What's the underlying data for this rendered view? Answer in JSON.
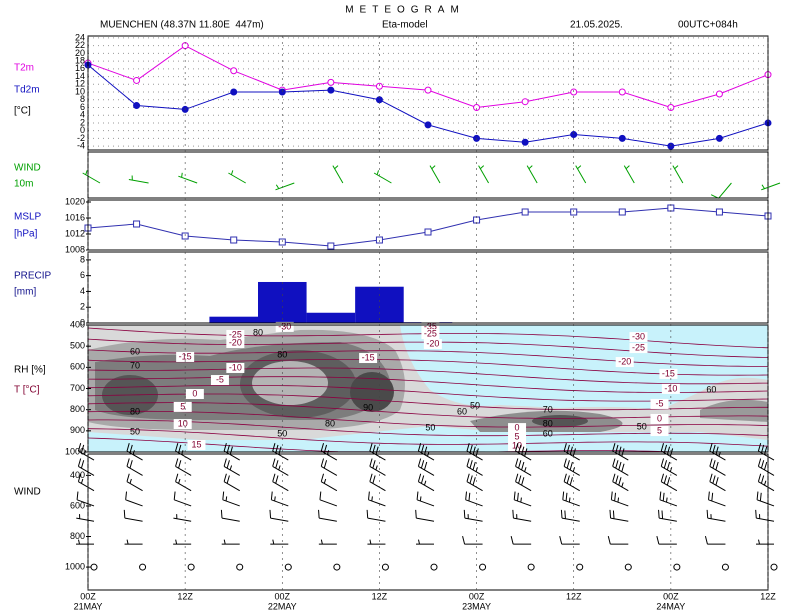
{
  "header": {
    "title": "METEOGRAM",
    "station": "MUENCHEN (48.37N 11.80E  447m)",
    "model": "Eta-model",
    "date": "21.05.2025.",
    "run": "00UTC+084h"
  },
  "time_axis": {
    "xlim": [
      0,
      84
    ],
    "xticks": [
      {
        "value": 0,
        "label": "00Z"
      },
      {
        "value": 12,
        "label": "12Z"
      },
      {
        "value": 24,
        "label": "00Z"
      },
      {
        "value": 36,
        "label": "12Z"
      },
      {
        "value": 48,
        "label": "00Z"
      },
      {
        "value": 60,
        "label": "12Z"
      },
      {
        "value": 72,
        "label": "00Z"
      },
      {
        "value": 84,
        "label": "12Z"
      }
    ],
    "date_labels": [
      {
        "value": 0,
        "label": "21MAY"
      },
      {
        "value": 24,
        "label": "22MAY"
      },
      {
        "value": 48,
        "label": "23MAY"
      },
      {
        "value": 72,
        "label": "24MAY"
      }
    ]
  },
  "chart_data": [
    {
      "type": "line",
      "unit": "[°C]",
      "x": [
        0,
        6,
        12,
        18,
        24,
        30,
        36,
        42,
        48,
        54,
        60,
        66,
        72,
        78,
        84
      ],
      "series": [
        {
          "name": "T2m",
          "color": "#e000e0",
          "values": [
            17.5,
            13,
            22,
            15.5,
            10.5,
            12.5,
            11.5,
            10.5,
            6,
            7.5,
            10,
            10,
            6,
            9.5,
            14.5
          ]
        },
        {
          "name": "Td2m",
          "color": "#1010c0",
          "values": [
            17,
            6.5,
            5.5,
            10,
            10,
            10.5,
            8,
            1.5,
            -2,
            -3,
            -1,
            -2,
            -4,
            -2,
            2
          ]
        }
      ],
      "ylim": [
        -5,
        24.5
      ],
      "yticks": [
        24,
        22,
        20,
        18,
        16,
        14,
        12,
        10,
        8,
        6,
        4,
        2,
        0,
        -2,
        -4
      ],
      "grid": true
    },
    {
      "type": "barbs",
      "label": "WIND",
      "sublabel": "10m",
      "color": "#00a000",
      "x": [
        0,
        6,
        12,
        18,
        24,
        30,
        36,
        42,
        48,
        54,
        60,
        66,
        72,
        78,
        84
      ],
      "speed": [
        5,
        5,
        5,
        5,
        5,
        5,
        5,
        5,
        5,
        5,
        5,
        5,
        5,
        10,
        5
      ],
      "direction": [
        300,
        280,
        290,
        300,
        250,
        330,
        300,
        330,
        330,
        330,
        330,
        330,
        330,
        220,
        250
      ]
    },
    {
      "type": "line",
      "label": "MSLP",
      "unit": "[hPa]",
      "x": [
        0,
        6,
        12,
        18,
        24,
        30,
        36,
        42,
        48,
        54,
        60,
        66,
        72,
        78,
        84
      ],
      "series": [
        {
          "name": "MSLP",
          "color": "#3030b0",
          "values": [
            1013.5,
            1014.5,
            1011.5,
            1010.5,
            1010,
            1009,
            1010.5,
            1012.5,
            1015.5,
            1017.5,
            1017.5,
            1017.5,
            1018.5,
            1017.5,
            1016.5
          ]
        }
      ],
      "ylim": [
        1008,
        1020.5
      ],
      "yticks": [
        1008,
        1012,
        1016,
        1020
      ]
    },
    {
      "type": "bar",
      "label": "PRECIP",
      "unit": "[mm]",
      "color": "#1010c0",
      "x": [
        0,
        6,
        12,
        18,
        24,
        30,
        36,
        42,
        48,
        54,
        60,
        66,
        72,
        78,
        84
      ],
      "values": [
        0,
        0,
        0,
        0.8,
        5.2,
        1.3,
        4.6,
        0.1,
        0,
        0,
        0,
        0,
        0,
        0,
        0
      ],
      "ylim": [
        0,
        9
      ],
      "yticks": [
        0,
        2,
        4,
        6,
        8
      ]
    },
    {
      "type": "contour",
      "label": "RH [%]",
      "sublabel": "T [°C]",
      "ylim": [
        1000,
        400
      ],
      "yticks": [
        400,
        500,
        600,
        700,
        800,
        900,
        1000
      ],
      "t_labels": [
        {
          "x": 24.3,
          "p": 409,
          "value": -30
        },
        {
          "x": 68,
          "p": 457,
          "value": -30
        },
        {
          "x": 42.3,
          "p": 409,
          "value": -35
        },
        {
          "x": 18.2,
          "p": 447,
          "value": -25
        },
        {
          "x": 42.3,
          "p": 443,
          "value": -25
        },
        {
          "x": 68,
          "p": 509,
          "value": -25
        },
        {
          "x": 18.2,
          "p": 485,
          "value": -20
        },
        {
          "x": 42.6,
          "p": 490,
          "value": -20
        },
        {
          "x": 66.3,
          "p": 575,
          "value": -20
        },
        {
          "x": 12,
          "p": 551,
          "value": -15
        },
        {
          "x": 34.6,
          "p": 556,
          "value": -15
        },
        {
          "x": 71.7,
          "p": 631,
          "value": -15
        },
        {
          "x": 18.2,
          "p": 603,
          "value": -10
        },
        {
          "x": 72,
          "p": 702,
          "value": -10
        },
        {
          "x": 16.3,
          "p": 660,
          "value": -5
        },
        {
          "x": 70.6,
          "p": 773,
          "value": -5
        },
        {
          "x": 13.2,
          "p": 726,
          "value": 0
        },
        {
          "x": 70.6,
          "p": 844,
          "value": 0
        },
        {
          "x": 53,
          "p": 887,
          "value": 0
        },
        {
          "x": 11.7,
          "p": 787,
          "value": 5
        },
        {
          "x": 70.6,
          "p": 901,
          "value": 5
        },
        {
          "x": 53,
          "p": 929,
          "value": 5
        },
        {
          "x": 11.7,
          "p": 868,
          "value": 10
        },
        {
          "x": 53,
          "p": 972,
          "value": 10
        },
        {
          "x": 13.4,
          "p": 967,
          "value": 15
        }
      ],
      "rh_labels": [
        {
          "x": 5.8,
          "p": 528,
          "value": 60
        },
        {
          "x": 5.8,
          "p": 594,
          "value": 70
        },
        {
          "x": 5.8,
          "p": 811,
          "value": 80
        },
        {
          "x": 5.8,
          "p": 906,
          "value": 50
        },
        {
          "x": 21,
          "p": 438,
          "value": 80
        },
        {
          "x": 24,
          "p": 542,
          "value": 80
        },
        {
          "x": 34.6,
          "p": 792,
          "value": 90
        },
        {
          "x": 29.9,
          "p": 868,
          "value": 80
        },
        {
          "x": 24,
          "p": 915,
          "value": 50
        },
        {
          "x": 42.3,
          "p": 887,
          "value": 50
        },
        {
          "x": 46.2,
          "p": 811,
          "value": 60
        },
        {
          "x": 47.8,
          "p": 783,
          "value": 50
        },
        {
          "x": 56.8,
          "p": 802,
          "value": 70
        },
        {
          "x": 56.8,
          "p": 868,
          "value": 80
        },
        {
          "x": 56.8,
          "p": 915,
          "value": 60
        },
        {
          "x": 68.4,
          "p": 882,
          "value": 50
        },
        {
          "x": 77,
          "p": 707,
          "value": 60
        }
      ]
    },
    {
      "type": "barbs-profile",
      "label": "WIND",
      "ylim": [
        1150,
        260
      ],
      "yticks": [
        400,
        600,
        800,
        1000
      ],
      "x": [
        0,
        6,
        12,
        18,
        24,
        30,
        36,
        42,
        48,
        54,
        60,
        66,
        72,
        78,
        84
      ],
      "levels": [
        300,
        400,
        500,
        600,
        700,
        850,
        1000
      ],
      "direction": [
        300,
        300,
        300,
        290,
        280,
        270,
        0
      ],
      "speed": [
        [
          25,
          20,
          15,
          10,
          5,
          5,
          0
        ],
        [
          25,
          20,
          15,
          10,
          10,
          5,
          0
        ],
        [
          25,
          20,
          15,
          10,
          5,
          5,
          0
        ],
        [
          30,
          25,
          20,
          15,
          10,
          5,
          0
        ],
        [
          30,
          25,
          20,
          15,
          10,
          5,
          0
        ],
        [
          25,
          20,
          15,
          10,
          10,
          5,
          0
        ],
        [
          30,
          25,
          20,
          15,
          10,
          5,
          0
        ],
        [
          35,
          30,
          25,
          15,
          10,
          5,
          0
        ],
        [
          40,
          35,
          30,
          20,
          15,
          10,
          0
        ],
        [
          40,
          35,
          30,
          25,
          15,
          10,
          0
        ],
        [
          40,
          35,
          30,
          25,
          20,
          10,
          0
        ],
        [
          40,
          40,
          35,
          25,
          20,
          10,
          0
        ],
        [
          40,
          35,
          30,
          25,
          20,
          10,
          0
        ],
        [
          35,
          30,
          30,
          20,
          15,
          10,
          0
        ],
        [
          30,
          30,
          25,
          20,
          15,
          5,
          0
        ]
      ]
    }
  ]
}
